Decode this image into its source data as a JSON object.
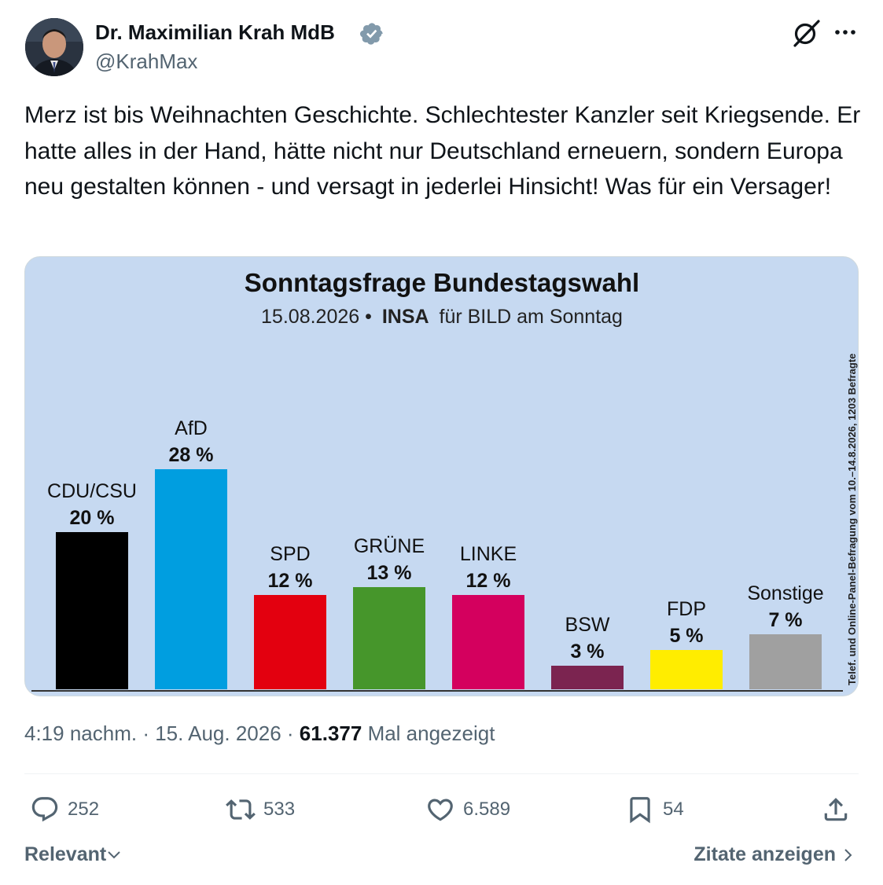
{
  "author": {
    "name": "Dr. Maximilian Krah MdB",
    "handle": "@KrahMax",
    "verified_color": "#829aab",
    "avatar_icon": "profile-photo"
  },
  "post": {
    "text": "Merz ist bis Weihnachten Geschichte. Schlechtester Kanzler seit Kriegsende. Er hatte alles in der Hand, hätte nicht nur Deutschland erneuern, sondern Europa neu gestalten können - und versagt in jederlei Hinsicht! Was für ein Versager!"
  },
  "chart_data": {
    "type": "bar",
    "title": "Sonntagsfrage Bundestagswahl",
    "subtitle_date": "15.08.2026 •",
    "subtitle_source": "INSA",
    "subtitle_rest": "für BILD am Sonntag",
    "side_note": "Telef. und Online-Panel-Befragung vom 10.–14.8.2026, 1203 Befragte",
    "categories": [
      "CDU/CSU",
      "AfD",
      "SPD",
      "GRÜNE",
      "LINKE",
      "BSW",
      "FDP",
      "Sonstige"
    ],
    "values": [
      20,
      28,
      12,
      13,
      12,
      3,
      5,
      7
    ],
    "value_labels": [
      "20 %",
      "28 %",
      "12 %",
      "13 %",
      "12 %",
      "3 %",
      "5 %",
      "7 %"
    ],
    "colors": [
      "#000000",
      "#009ee0",
      "#e3000f",
      "#46962b",
      "#d4005e",
      "#7b2450",
      "#ffed00",
      "#a0a0a0"
    ],
    "ylim": [
      0,
      28
    ],
    "background": "#c6d9f1",
    "grid": false,
    "legend": "none"
  },
  "meta": {
    "time": "4:19 nachm. · 15. Aug. 2026 ·",
    "views": "61.377",
    "views_label": "Mal angezeigt"
  },
  "actions": {
    "replies": "252",
    "reposts": "533",
    "likes": "6.589",
    "bookmarks": "54"
  },
  "footer": {
    "sort_label": "Relevant",
    "quotes_label": "Zitate anzeigen"
  }
}
